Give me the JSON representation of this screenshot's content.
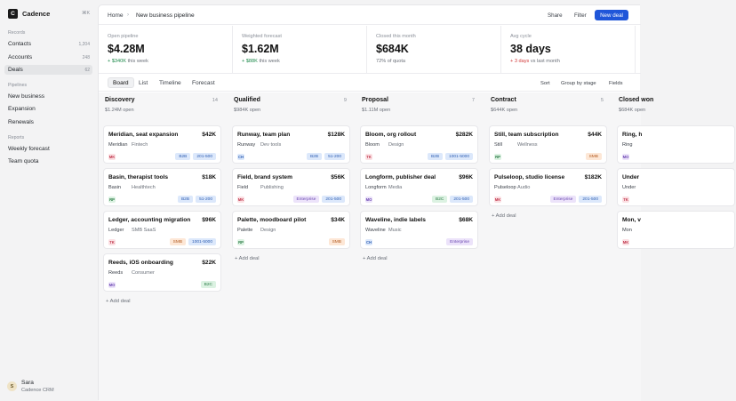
{
  "sidebar": {
    "app_name": "Cadence",
    "logo_letter": "C",
    "shortcut": "⌘K",
    "sections": {
      "records": "Records",
      "pipelines": "Pipelines",
      "reports": "Reports"
    },
    "records": [
      {
        "label": "Contacts",
        "count": "1,204"
      },
      {
        "label": "Accounts",
        "count": "248"
      },
      {
        "label": "Deals",
        "count": "62",
        "active": true
      }
    ],
    "pipelines": [
      {
        "label": "New business"
      },
      {
        "label": "Expansion"
      },
      {
        "label": "Renewals"
      }
    ],
    "reports": [
      {
        "label": "Weekly forecast"
      },
      {
        "label": "Team quota"
      }
    ],
    "user": {
      "initial": "S",
      "name": "Sara",
      "org": "Cadence CRM"
    }
  },
  "topbar": {
    "home": "Home",
    "separator": "›",
    "current": "New business pipeline",
    "share": "Share",
    "filter": "Filter",
    "new_deal": "New deal"
  },
  "stats": [
    {
      "label": "Open pipeline",
      "value": "$4.28M",
      "delta": "+ $340K",
      "delta_tone": "pos",
      "note": "this week"
    },
    {
      "label": "Weighted forecast",
      "value": "$1.62M",
      "delta": "+ $88K",
      "delta_tone": "pos",
      "note": "this week"
    },
    {
      "label": "Closed this month",
      "value": "$684K",
      "delta": "72%",
      "delta_tone": "none",
      "note": "of quota"
    },
    {
      "label": "Avg cycle",
      "value": "38 days",
      "delta": "+ 3 days",
      "delta_tone": "neg",
      "note": "vs last month"
    }
  ],
  "views": {
    "tabs": [
      "Board",
      "List",
      "Timeline",
      "Forecast"
    ],
    "active": "Board",
    "options": [
      "Sort",
      "Group by stage",
      "Fields"
    ]
  },
  "colors": {
    "primary": "#1f56d9",
    "positive": "#1f8a4c",
    "negative": "#d23b3b",
    "tags": {
      "B2B": {
        "bg": "#dce8fb",
        "fg": "#2f5fb3"
      },
      "B2C": {
        "bg": "#dcf2e2",
        "fg": "#2a7a45"
      },
      "SMB": {
        "bg": "#fde7d6",
        "fg": "#b25a1f"
      },
      "SMB SaaS": {
        "bg": "#fde7d6",
        "fg": "#b25a1f"
      },
      "Enterprise": {
        "bg": "#ece3fa",
        "fg": "#6a46b0"
      },
      "size": {
        "bg": "#dce8fb",
        "fg": "#2f5fb3"
      }
    },
    "owners": {
      "MK": {
        "bg": "#fbe0e3",
        "fg": "#c0394f"
      },
      "RP": {
        "bg": "#dcf2e2",
        "fg": "#2a7a45"
      },
      "TK": {
        "bg": "#fbe0e3",
        "fg": "#c0394f"
      },
      "MO": {
        "bg": "#ece3fa",
        "fg": "#6a46b0"
      },
      "CH": {
        "bg": "#dce8fb",
        "fg": "#2f5fb3"
      }
    }
  },
  "add_deal_label": "+ Add deal",
  "columns": [
    {
      "name": "Discovery",
      "count": "14",
      "open": "$1.24M open",
      "cards": [
        {
          "title": "Meridian, seat expansion",
          "amount": "$42K",
          "account": "Meridian",
          "industry": "Fintech",
          "owner": "MK",
          "tags": [
            "B2B",
            "201-500"
          ]
        },
        {
          "title": "Basin, therapist tools",
          "amount": "$18K",
          "account": "Basin",
          "industry": "Healthtech",
          "owner": "RP",
          "tags": [
            "B2B",
            "51-200"
          ]
        },
        {
          "title": "Ledger, accounting migration",
          "amount": "$96K",
          "account": "Ledger",
          "industry": "SMB SaaS",
          "owner": "TK",
          "tags": [
            "SMB",
            "1001-5000"
          ]
        },
        {
          "title": "Reeds, iOS onboarding",
          "amount": "$22K",
          "account": "Reeds",
          "industry": "Consumer",
          "owner": "MO",
          "tags": [
            "B2C"
          ]
        }
      ]
    },
    {
      "name": "Qualified",
      "count": "9",
      "open": "$984K open",
      "cards": [
        {
          "title": "Runway, team plan",
          "amount": "$128K",
          "account": "Runway",
          "industry": "Dev tools",
          "owner": "CH",
          "tags": [
            "B2B",
            "51-200"
          ]
        },
        {
          "title": "Field, brand system",
          "amount": "$56K",
          "account": "Field",
          "industry": "Publishing",
          "owner": "MK",
          "tags": [
            "Enterprise",
            "201-500"
          ]
        },
        {
          "title": "Palette, moodboard pilot",
          "amount": "$34K",
          "account": "Palette",
          "industry": "Design",
          "owner": "RP",
          "tags": [
            "SMB"
          ]
        }
      ]
    },
    {
      "name": "Proposal",
      "count": "7",
      "open": "$1.11M open",
      "cards": [
        {
          "title": "Bloom, org rollout",
          "amount": "$282K",
          "account": "Bloom",
          "industry": "Design",
          "owner": "TK",
          "tags": [
            "B2B",
            "1001-5000"
          ]
        },
        {
          "title": "Longform, publisher deal",
          "amount": "$96K",
          "account": "Longform",
          "industry": "Media",
          "owner": "MO",
          "tags": [
            "B2C",
            "201-500"
          ]
        },
        {
          "title": "Waveline, indie labels",
          "amount": "$68K",
          "account": "Waveline",
          "industry": "Music",
          "owner": "CH",
          "tags": [
            "Enterprise"
          ]
        }
      ]
    },
    {
      "name": "Contract",
      "count": "5",
      "open": "$644K open",
      "cards": [
        {
          "title": "Still, team subscription",
          "amount": "$44K",
          "account": "Still",
          "industry": "Wellness",
          "owner": "RP",
          "tags": [
            "SMB"
          ]
        },
        {
          "title": "Pulseloop, studio license",
          "amount": "$182K",
          "account": "Pulseloop",
          "industry": "Audio",
          "owner": "MK",
          "tags": [
            "Enterprise",
            "201-500"
          ]
        }
      ]
    },
    {
      "name": "Closed won",
      "count": "",
      "open": "$684K open",
      "cards": [
        {
          "title": "Ring, h",
          "amount": "",
          "account": "Ring",
          "industry": "",
          "owner": "MO",
          "tags": []
        },
        {
          "title": "Under",
          "amount": "",
          "account": "Under",
          "industry": "",
          "owner": "TK",
          "tags": []
        },
        {
          "title": "Mon, v",
          "amount": "",
          "account": "Mon",
          "industry": "",
          "owner": "MK",
          "tags": []
        }
      ]
    }
  ]
}
